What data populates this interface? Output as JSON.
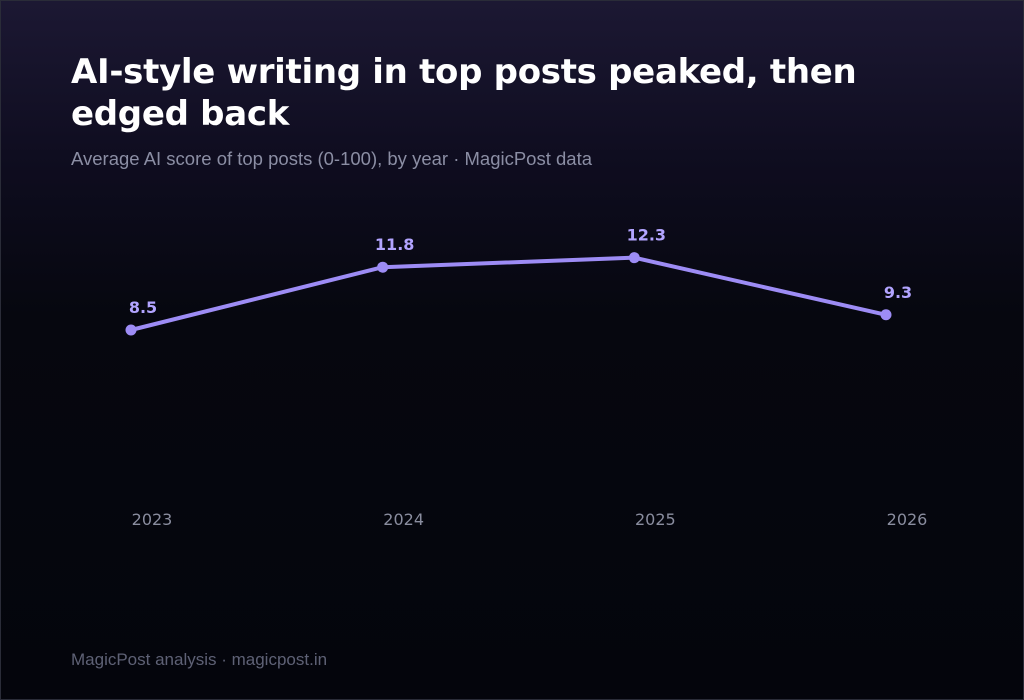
{
  "header": {
    "title": "AI-style writing in top posts peaked, then edged back",
    "subtitle": "Average AI score of top posts (0-100), by year · MagicPost data"
  },
  "footer": {
    "source": "MagicPost analysis · magicpost.in"
  },
  "colors": {
    "line": "#9d8cf5",
    "label": "#b2a4ff",
    "tick": "#8a8d9f"
  },
  "chart_data": {
    "type": "line",
    "title": "AI-style writing in top posts peaked, then edged back",
    "subtitle": "Average AI score of top posts (0-100), by year · MagicPost data",
    "xlabel": "",
    "ylabel": "",
    "x": [
      "2023",
      "2024",
      "2025",
      "2026"
    ],
    "series": [
      {
        "values": [
          8.5,
          11.8,
          12.3,
          9.3
        ]
      }
    ],
    "data_labels": [
      "8.5",
      "11.8",
      "12.3",
      "9.3"
    ],
    "grid": false,
    "legend": "none"
  }
}
